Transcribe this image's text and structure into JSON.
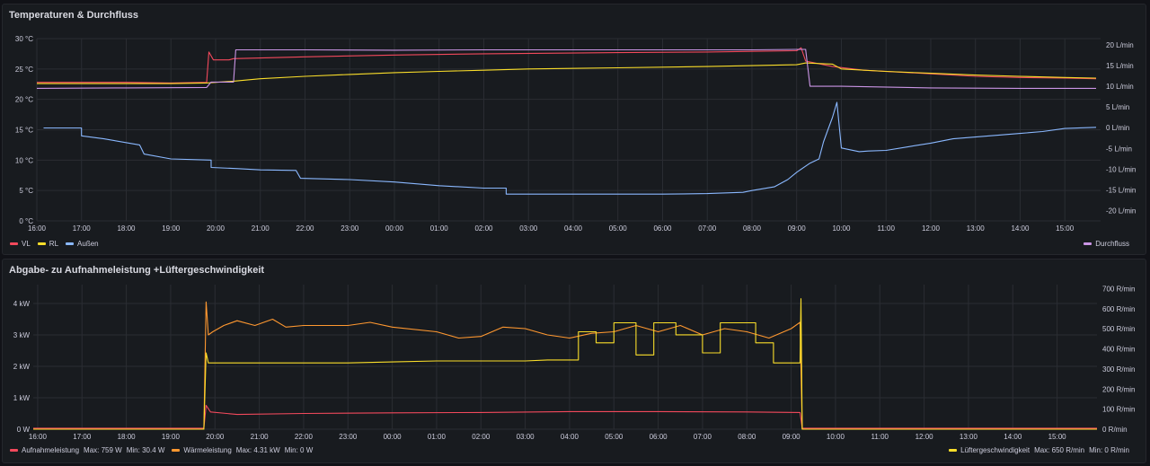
{
  "panels": [
    {
      "title": "Temperaturen & Durchfluss",
      "legend_left": [
        {
          "label": "VL",
          "color": "#f2495c"
        },
        {
          "label": "RL",
          "color": "#fade2a"
        },
        {
          "label": "Außen",
          "color": "#8ab8ff"
        }
      ],
      "legend_right": [
        {
          "label": "Durchfluss",
          "color": "#ca95e5"
        }
      ]
    },
    {
      "title": "Abgabe- zu Aufnahmeleistung +Lüftergeschwindigkeit",
      "legend_left": [
        {
          "label": "Aufnahmeleistung",
          "color": "#f2495c",
          "max": "Max: 759 W",
          "min": "Min: 30.4 W"
        },
        {
          "label": "Wärmeleistung",
          "color": "#ff9830",
          "max": "Max: 4.31 kW",
          "min": "Min: 0 W"
        }
      ],
      "legend_right": [
        {
          "label": "Lüftergeschwindigkeit",
          "color": "#fade2a",
          "max": "Max: 650 R/min",
          "min": "Min: 0 R/min"
        }
      ]
    }
  ],
  "chart_data": [
    {
      "type": "line",
      "title": "Temperaturen & Durchfluss",
      "x_ticks": [
        "16:00",
        "17:00",
        "18:00",
        "19:00",
        "20:00",
        "21:00",
        "22:00",
        "23:00",
        "00:00",
        "01:00",
        "02:00",
        "03:00",
        "04:00",
        "05:00",
        "06:00",
        "07:00",
        "08:00",
        "09:00",
        "10:00",
        "11:00",
        "12:00",
        "13:00",
        "14:00",
        "15:00"
      ],
      "y_left_ticks": [
        "0 °C",
        "5 °C",
        "10 °C",
        "15 °C",
        "20 °C",
        "25 °C",
        "30 °C"
      ],
      "y_left_range": [
        0,
        30
      ],
      "y_right_ticks": [
        "-20 L/min",
        "-15 L/min",
        "-10 L/min",
        "-5 L/min",
        "0 L/min",
        "5 L/min",
        "10 L/min",
        "15 L/min",
        "20 L/min"
      ],
      "y_right_range": [
        -22.5,
        21.5
      ],
      "x_range": [
        0,
        23.8
      ],
      "series": [
        {
          "name": "VL",
          "axis": "left",
          "color": "#f2495c",
          "points": [
            [
              0,
              22.8
            ],
            [
              2,
              22.8
            ],
            [
              3,
              22.7
            ],
            [
              3.8,
              22.8
            ],
            [
              3.85,
              27.8
            ],
            [
              3.95,
              26.5
            ],
            [
              4.3,
              26.5
            ],
            [
              4.4,
              26.7
            ],
            [
              6,
              27
            ],
            [
              8,
              27.3
            ],
            [
              10,
              27.5
            ],
            [
              13,
              27.7
            ],
            [
              15,
              27.8
            ],
            [
              16,
              27.9
            ],
            [
              17,
              28
            ],
            [
              17.1,
              28.5
            ],
            [
              17.2,
              26.3
            ],
            [
              17.8,
              25.4
            ],
            [
              18.5,
              24.8
            ],
            [
              20,
              24.2
            ],
            [
              21,
              23.8
            ],
            [
              22,
              23.6
            ],
            [
              23,
              23.5
            ],
            [
              23.7,
              23.4
            ]
          ]
        },
        {
          "name": "RL",
          "axis": "left",
          "color": "#fade2a",
          "points": [
            [
              0,
              22.6
            ],
            [
              3,
              22.6
            ],
            [
              3.8,
              22.7
            ],
            [
              4.4,
              23
            ],
            [
              5,
              23.4
            ],
            [
              6,
              23.8
            ],
            [
              7,
              24.1
            ],
            [
              8,
              24.4
            ],
            [
              9,
              24.6
            ],
            [
              10,
              24.8
            ],
            [
              11,
              25
            ],
            [
              13,
              25.2
            ],
            [
              15,
              25.4
            ],
            [
              17,
              25.7
            ],
            [
              17.2,
              26
            ],
            [
              17.8,
              25.8
            ],
            [
              18,
              25
            ],
            [
              19,
              24.6
            ],
            [
              20,
              24.3
            ],
            [
              21,
              24
            ],
            [
              22,
              23.8
            ],
            [
              23,
              23.6
            ],
            [
              23.7,
              23.5
            ]
          ]
        },
        {
          "name": "Außen",
          "axis": "left",
          "color": "#8ab8ff",
          "points": [
            [
              0.15,
              15.3
            ],
            [
              1,
              15.3
            ],
            [
              1,
              14
            ],
            [
              1.5,
              13.5
            ],
            [
              2.3,
              12.5
            ],
            [
              2.4,
              11
            ],
            [
              3,
              10.2
            ],
            [
              3.9,
              10
            ],
            [
              3.9,
              8.8
            ],
            [
              4.5,
              8.6
            ],
            [
              5,
              8.4
            ],
            [
              5.8,
              8.3
            ],
            [
              5.9,
              7
            ],
            [
              7,
              6.8
            ],
            [
              8,
              6.4
            ],
            [
              9,
              5.8
            ],
            [
              10,
              5.4
            ],
            [
              10.5,
              5.4
            ],
            [
              10.5,
              4.4
            ],
            [
              11.5,
              4.4
            ],
            [
              12,
              4.4
            ],
            [
              13,
              4.4
            ],
            [
              14,
              4.4
            ],
            [
              15,
              4.5
            ],
            [
              15.8,
              4.7
            ],
            [
              16,
              5
            ],
            [
              16.5,
              5.6
            ],
            [
              16.8,
              6.8
            ],
            [
              17,
              8
            ],
            [
              17.3,
              9.5
            ],
            [
              17.5,
              10.2
            ],
            [
              17.6,
              13
            ],
            [
              17.7,
              15
            ],
            [
              17.8,
              17
            ],
            [
              17.9,
              19.5
            ],
            [
              18,
              12
            ],
            [
              18.4,
              11.4
            ],
            [
              18.6,
              11.5
            ],
            [
              19,
              11.6
            ],
            [
              19.5,
              12.2
            ],
            [
              20,
              12.8
            ],
            [
              20.5,
              13.5
            ],
            [
              21,
              13.8
            ],
            [
              22,
              14.4
            ],
            [
              22.5,
              14.7
            ],
            [
              23,
              15.2
            ],
            [
              23.7,
              15.4
            ]
          ]
        },
        {
          "name": "Durchfluss",
          "axis": "right",
          "color": "#ca95e5",
          "points": [
            [
              0,
              9.5
            ],
            [
              2,
              9.6
            ],
            [
              3.8,
              9.7
            ],
            [
              3.9,
              11
            ],
            [
              4.4,
              11
            ],
            [
              4.45,
              18.8
            ],
            [
              6,
              18.8
            ],
            [
              8,
              18.7
            ],
            [
              10,
              18.8
            ],
            [
              12,
              18.8
            ],
            [
              14,
              18.8
            ],
            [
              16,
              18.8
            ],
            [
              17,
              18.9
            ],
            [
              17.2,
              18.9
            ],
            [
              17.3,
              10
            ],
            [
              18,
              10
            ],
            [
              20,
              9.6
            ],
            [
              22,
              9.5
            ],
            [
              23.7,
              9.5
            ]
          ]
        }
      ]
    },
    {
      "type": "line",
      "title": "Abgabe- zu Aufnahmeleistung +Lüftergeschwindigkeit",
      "x_ticks": [
        "16:00",
        "17:00",
        "18:00",
        "19:00",
        "20:00",
        "21:00",
        "22:00",
        "23:00",
        "00:00",
        "01:00",
        "02:00",
        "03:00",
        "04:00",
        "05:00",
        "06:00",
        "07:00",
        "08:00",
        "09:00",
        "10:00",
        "11:00",
        "12:00",
        "13:00",
        "14:00",
        "15:00"
      ],
      "y_left_ticks": [
        "0 W",
        "1 kW",
        "2 kW",
        "3 kW",
        "4 kW"
      ],
      "y_left_range": [
        0,
        4.6
      ],
      "y_right_ticks": [
        "0 R/min",
        "100 R/min",
        "200 R/min",
        "300 R/min",
        "400 R/min",
        "500 R/min",
        "600 R/min",
        "700 R/min"
      ],
      "y_right_range": [
        0,
        720
      ],
      "x_range": [
        -0.1,
        23.9
      ],
      "series": [
        {
          "name": "Aufnahmeleistung",
          "axis": "left",
          "color": "#f2495c",
          "points": [
            [
              -0.1,
              0.03
            ],
            [
              3.75,
              0.03
            ],
            [
              3.8,
              0.76
            ],
            [
              3.9,
              0.55
            ],
            [
              4.5,
              0.47
            ],
            [
              6,
              0.5
            ],
            [
              8,
              0.52
            ],
            [
              10,
              0.53
            ],
            [
              12,
              0.56
            ],
            [
              14,
              0.56
            ],
            [
              16,
              0.55
            ],
            [
              17.2,
              0.53
            ],
            [
              17.25,
              0.03
            ],
            [
              23.9,
              0.03
            ]
          ]
        },
        {
          "name": "Wärmeleistung",
          "axis": "left",
          "color": "#ff9830",
          "points": [
            [
              -0.1,
              0
            ],
            [
              3.75,
              0
            ],
            [
              3.8,
              4.05
            ],
            [
              3.85,
              3.0
            ],
            [
              3.95,
              3.1
            ],
            [
              4.2,
              3.3
            ],
            [
              4.5,
              3.45
            ],
            [
              4.9,
              3.3
            ],
            [
              5.3,
              3.5
            ],
            [
              5.6,
              3.25
            ],
            [
              6,
              3.3
            ],
            [
              7,
              3.3
            ],
            [
              7.5,
              3.4
            ],
            [
              8,
              3.25
            ],
            [
              9,
              3.1
            ],
            [
              9.5,
              2.9
            ],
            [
              10,
              2.95
            ],
            [
              10.5,
              3.25
            ],
            [
              11,
              3.2
            ],
            [
              11.5,
              3.0
            ],
            [
              12,
              2.9
            ],
            [
              12.5,
              3.05
            ],
            [
              13,
              3.1
            ],
            [
              13.5,
              3.3
            ],
            [
              14,
              3.1
            ],
            [
              14.5,
              3.3
            ],
            [
              15,
              3.0
            ],
            [
              15.5,
              3.2
            ],
            [
              16,
              3.1
            ],
            [
              16.5,
              2.9
            ],
            [
              17,
              3.2
            ],
            [
              17.2,
              3.4
            ],
            [
              17.25,
              0
            ],
            [
              23.9,
              0
            ]
          ]
        },
        {
          "name": "Lüftergeschwindigkeit",
          "axis": "right",
          "color": "#fade2a",
          "points": [
            [
              -0.1,
              0
            ],
            [
              3.75,
              0
            ],
            [
              3.8,
              380
            ],
            [
              3.85,
              330
            ],
            [
              6,
              330
            ],
            [
              7,
              330
            ],
            [
              8,
              335
            ],
            [
              9,
              340
            ],
            [
              10,
              340
            ],
            [
              11,
              340
            ],
            [
              11.5,
              345
            ],
            [
              12.2,
              345
            ],
            [
              12.2,
              485
            ],
            [
              12.6,
              485
            ],
            [
              12.6,
              430
            ],
            [
              13,
              430
            ],
            [
              13,
              530
            ],
            [
              13.5,
              530
            ],
            [
              13.5,
              370
            ],
            [
              13.9,
              370
            ],
            [
              13.9,
              530
            ],
            [
              14.4,
              530
            ],
            [
              14.4,
              470
            ],
            [
              15,
              470
            ],
            [
              15,
              380
            ],
            [
              15.4,
              380
            ],
            [
              15.4,
              530
            ],
            [
              16.2,
              530
            ],
            [
              16.2,
              430
            ],
            [
              16.6,
              430
            ],
            [
              16.6,
              330
            ],
            [
              17.2,
              330
            ],
            [
              17.22,
              650
            ],
            [
              17.25,
              0
            ],
            [
              23.9,
              0
            ]
          ]
        }
      ]
    }
  ]
}
